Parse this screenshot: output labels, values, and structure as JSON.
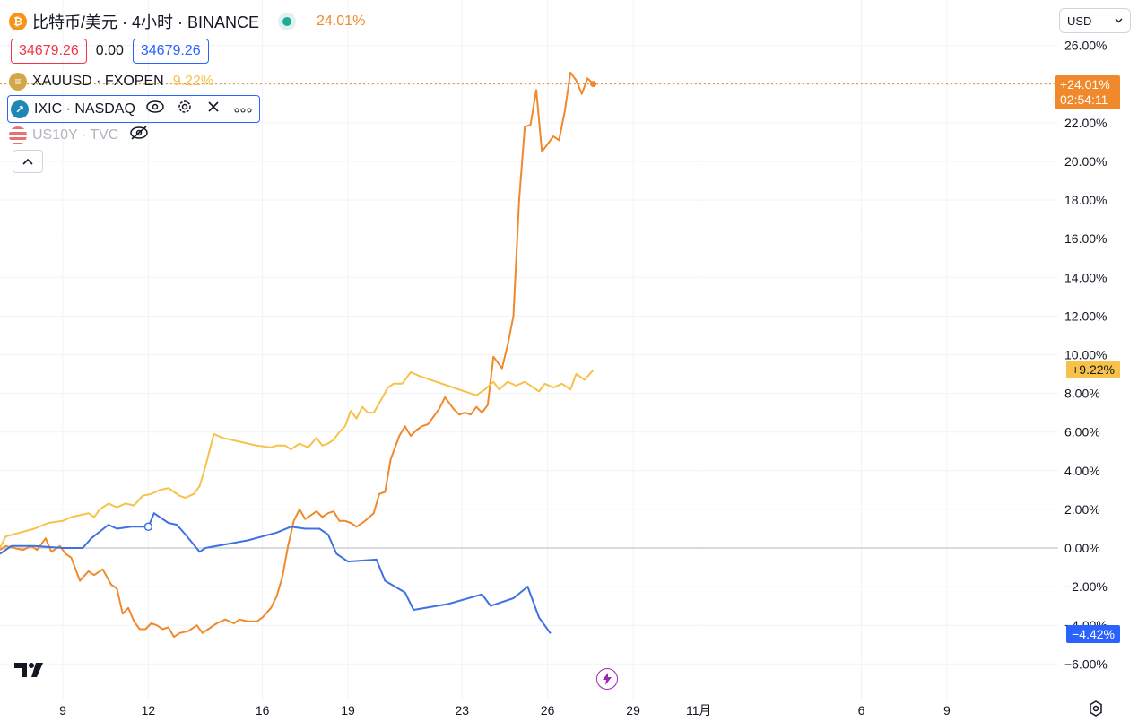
{
  "header": {
    "symbol_title": "比特币/美元 · 4小时 · BINANCE",
    "main_change": "24.01%",
    "price_bid": "34679.26",
    "spread": "0.00",
    "price_ask": "34679.26",
    "currency": "USD"
  },
  "legend": {
    "items": [
      {
        "label": "XAUUSD · FXOPEN",
        "value": "9.22%"
      },
      {
        "label": "IXIC · NASDAQ",
        "value": ""
      },
      {
        "label": "US10Y · TVC",
        "value": ""
      }
    ]
  },
  "tags": {
    "btc_value": "+24.01%",
    "btc_countdown": "02:54:11",
    "gold_value": "+9.22%",
    "ixic_value": "−4.42%"
  },
  "colors": {
    "btc": "#f0892b",
    "gold": "#f7c14a",
    "ixic": "#3d72e0",
    "zero_line": "#b2b5be"
  },
  "chart_data": {
    "type": "line",
    "y_unit": "%",
    "ylim": [
      -6.9,
      26.4
    ],
    "y_ticks": [
      "26.00%",
      "24.00%",
      "22.00%",
      "20.00%",
      "18.00%",
      "16.00%",
      "14.00%",
      "12.00%",
      "10.00%",
      "8.00%",
      "6.00%",
      "4.00%",
      "2.00%",
      "0.00%",
      "−2.00%",
      "−4.00%",
      "−6.00%"
    ],
    "y_tick_values": [
      26,
      24,
      22,
      20,
      18,
      16,
      14,
      12,
      10,
      8,
      6,
      4,
      2,
      0,
      -2,
      -4,
      -6
    ],
    "x_ticks": [
      "9",
      "12",
      "16",
      "19",
      "23",
      "26",
      "29",
      "11月",
      "6",
      "9"
    ],
    "x_tick_positions": [
      9,
      12,
      16,
      19,
      23,
      26,
      29,
      31.3,
      37,
      40
    ],
    "x_range": [
      6.8,
      43.9
    ],
    "series": [
      {
        "name": "比特币/美元",
        "key": "btc",
        "points": [
          [
            6.8,
            -0.1
          ],
          [
            7,
            0.1
          ],
          [
            7.3,
            0
          ],
          [
            7.6,
            -0.1
          ],
          [
            7.9,
            0.1
          ],
          [
            8.1,
            -0.1
          ],
          [
            8.4,
            0.5
          ],
          [
            8.6,
            -0.2
          ],
          [
            8.9,
            0.1
          ],
          [
            9.1,
            -0.3
          ],
          [
            9.3,
            -0.5
          ],
          [
            9.6,
            -1.7
          ],
          [
            9.9,
            -1.2
          ],
          [
            10.1,
            -1.4
          ],
          [
            10.4,
            -1.1
          ],
          [
            10.7,
            -1.9
          ],
          [
            10.9,
            -2.1
          ],
          [
            11.1,
            -3.4
          ],
          [
            11.3,
            -3.1
          ],
          [
            11.5,
            -3.8
          ],
          [
            11.7,
            -4.2
          ],
          [
            11.9,
            -4.2
          ],
          [
            12.1,
            -3.9
          ],
          [
            12.3,
            -4
          ],
          [
            12.5,
            -4.2
          ],
          [
            12.7,
            -4.1
          ],
          [
            12.9,
            -4.6
          ],
          [
            13.1,
            -4.4
          ],
          [
            13.4,
            -4.3
          ],
          [
            13.7,
            -4
          ],
          [
            13.9,
            -4.4
          ],
          [
            14.1,
            -4.2
          ],
          [
            14.4,
            -3.9
          ],
          [
            14.7,
            -3.7
          ],
          [
            15,
            -3.9
          ],
          [
            15.2,
            -3.7
          ],
          [
            15.5,
            -3.8
          ],
          [
            15.8,
            -3.8
          ],
          [
            16,
            -3.6
          ],
          [
            16.3,
            -3.1
          ],
          [
            16.5,
            -2.5
          ],
          [
            16.7,
            -1.5
          ],
          [
            16.9,
            0.1
          ],
          [
            17.1,
            1.4
          ],
          [
            17.3,
            2.0
          ],
          [
            17.5,
            1.5
          ],
          [
            17.7,
            1.7
          ],
          [
            17.9,
            1.9
          ],
          [
            18.1,
            1.6
          ],
          [
            18.3,
            1.8
          ],
          [
            18.5,
            1.9
          ],
          [
            18.7,
            1.4
          ],
          [
            18.9,
            1.4
          ],
          [
            19.1,
            1.3
          ],
          [
            19.3,
            1.1
          ],
          [
            19.6,
            1.4
          ],
          [
            19.9,
            1.8
          ],
          [
            20.1,
            2.8
          ],
          [
            20.3,
            2.9
          ],
          [
            20.5,
            4.6
          ],
          [
            20.8,
            5.8
          ],
          [
            21,
            6.3
          ],
          [
            21.2,
            5.8
          ],
          [
            21.4,
            6.1
          ],
          [
            21.6,
            6.3
          ],
          [
            21.8,
            6.4
          ],
          [
            22,
            6.8
          ],
          [
            22.2,
            7.2
          ],
          [
            22.4,
            7.8
          ],
          [
            22.7,
            7.2
          ],
          [
            22.9,
            6.9
          ],
          [
            23.1,
            7.0
          ],
          [
            23.3,
            6.9
          ],
          [
            23.5,
            7.3
          ],
          [
            23.7,
            7.0
          ],
          [
            23.9,
            7.4
          ],
          [
            24.1,
            9.9
          ],
          [
            24.4,
            9.3
          ],
          [
            24.6,
            10.5
          ],
          [
            24.8,
            12.0
          ],
          [
            25.0,
            18.0
          ],
          [
            25.2,
            21.8
          ],
          [
            25.4,
            21.9
          ],
          [
            25.6,
            23.7
          ],
          [
            25.8,
            20.5
          ],
          [
            26.0,
            20.9
          ],
          [
            26.2,
            21.3
          ],
          [
            26.4,
            21.1
          ],
          [
            26.6,
            22.6
          ],
          [
            26.8,
            24.6
          ],
          [
            27.0,
            24.2
          ],
          [
            27.2,
            23.5
          ],
          [
            27.4,
            24.3
          ],
          [
            27.6,
            24.01
          ]
        ]
      },
      {
        "name": "XAUUSD · FXOPEN",
        "key": "gold",
        "points": [
          [
            6.8,
            0
          ],
          [
            7.0,
            0.6
          ],
          [
            7.5,
            0.8
          ],
          [
            8.0,
            1.0
          ],
          [
            8.5,
            1.3
          ],
          [
            9.0,
            1.4
          ],
          [
            9.3,
            1.6
          ],
          [
            9.6,
            1.7
          ],
          [
            9.9,
            1.8
          ],
          [
            10.1,
            1.6
          ],
          [
            10.3,
            2.0
          ],
          [
            10.6,
            2.3
          ],
          [
            10.9,
            2.1
          ],
          [
            11.2,
            2.3
          ],
          [
            11.5,
            2.2
          ],
          [
            11.8,
            2.7
          ],
          [
            12.1,
            2.8
          ],
          [
            12.4,
            3.0
          ],
          [
            12.7,
            3.1
          ],
          [
            12.9,
            2.9
          ],
          [
            13.1,
            2.7
          ],
          [
            13.3,
            2.6
          ],
          [
            13.6,
            2.8
          ],
          [
            13.8,
            3.2
          ],
          [
            14.0,
            4.2
          ],
          [
            14.3,
            5.9
          ],
          [
            14.6,
            5.7
          ],
          [
            15.2,
            5.5
          ],
          [
            15.8,
            5.3
          ],
          [
            16.3,
            5.2
          ],
          [
            16.5,
            5.3
          ],
          [
            16.8,
            5.3
          ],
          [
            17.0,
            5.1
          ],
          [
            17.3,
            5.4
          ],
          [
            17.6,
            5.2
          ],
          [
            17.9,
            5.7
          ],
          [
            18.1,
            5.3
          ],
          [
            18.3,
            5.4
          ],
          [
            18.5,
            5.6
          ],
          [
            18.7,
            6.0
          ],
          [
            18.9,
            6.3
          ],
          [
            19.1,
            7.1
          ],
          [
            19.3,
            6.7
          ],
          [
            19.5,
            7.3
          ],
          [
            19.7,
            7.0
          ],
          [
            19.9,
            7.0
          ],
          [
            20.1,
            7.5
          ],
          [
            20.4,
            8.3
          ],
          [
            20.6,
            8.5
          ],
          [
            20.9,
            8.5
          ],
          [
            21.2,
            9.1
          ],
          [
            21.5,
            8.9
          ],
          [
            22.5,
            8.4
          ],
          [
            23.5,
            7.9
          ],
          [
            23.8,
            8.2
          ],
          [
            24.1,
            8.6
          ],
          [
            24.3,
            8.2
          ],
          [
            24.6,
            8.6
          ],
          [
            24.9,
            8.4
          ],
          [
            25.2,
            8.6
          ],
          [
            25.5,
            8.3
          ],
          [
            25.7,
            8.1
          ],
          [
            25.9,
            8.5
          ],
          [
            26.2,
            8.3
          ],
          [
            26.5,
            8.5
          ],
          [
            26.8,
            8.2
          ],
          [
            27.0,
            9.0
          ],
          [
            27.3,
            8.7
          ],
          [
            27.6,
            9.22
          ]
        ]
      },
      {
        "name": "IXIC · NASDAQ",
        "key": "ixic",
        "points": [
          [
            6.8,
            -0.3
          ],
          [
            7.2,
            0.1
          ],
          [
            8.0,
            0.1
          ],
          [
            9.0,
            0.0
          ],
          [
            9.7,
            0.0
          ],
          [
            10.0,
            0.5
          ],
          [
            10.6,
            1.2
          ],
          [
            10.9,
            1.0
          ],
          [
            11.4,
            1.1
          ],
          [
            12.0,
            1.1
          ],
          [
            12.2,
            1.8
          ],
          [
            12.7,
            1.3
          ],
          [
            13.0,
            1.2
          ],
          [
            13.3,
            0.7
          ],
          [
            13.8,
            -0.2
          ],
          [
            14.0,
            0.0
          ],
          [
            15.5,
            0.4
          ],
          [
            16.5,
            0.8
          ],
          [
            17.0,
            1.1
          ],
          [
            17.5,
            1.0
          ],
          [
            18.0,
            1.0
          ],
          [
            18.3,
            0.7
          ],
          [
            18.6,
            -0.3
          ],
          [
            19.0,
            -0.7
          ],
          [
            20.0,
            -0.6
          ],
          [
            20.3,
            -1.7
          ],
          [
            21.0,
            -2.3
          ],
          [
            21.3,
            -3.2
          ],
          [
            22.5,
            -2.9
          ],
          [
            23.7,
            -2.4
          ],
          [
            24.0,
            -3.0
          ],
          [
            24.8,
            -2.6
          ],
          [
            25.3,
            -2.0
          ],
          [
            25.7,
            -3.6
          ],
          [
            26.1,
            -4.42
          ]
        ]
      }
    ],
    "ixic_marker": [
      12.0,
      1.1
    ]
  }
}
